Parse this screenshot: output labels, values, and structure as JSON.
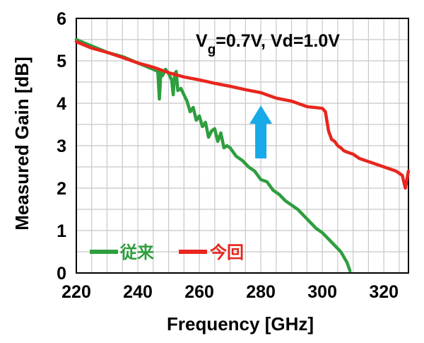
{
  "chart_data": {
    "type": "line",
    "xlabel": "Frequency [GHz]",
    "ylabel": "Measured Gain [dB]",
    "xlim": [
      220,
      328
    ],
    "ylim": [
      0,
      6
    ],
    "xticks": [
      220,
      240,
      260,
      280,
      300,
      320
    ],
    "yticks": [
      0,
      1,
      2,
      3,
      4,
      5,
      6
    ],
    "grid": true,
    "legend_placement": "bottom-left",
    "annotation": {
      "main": "V",
      "sub": "g",
      "rest": "=0.7V, Vd=1.0V"
    },
    "arrow": {
      "x": 280,
      "y_from": 2.7,
      "y_to": 3.95,
      "color": "#18A9E8"
    },
    "series": [
      {
        "name": "従来",
        "color": "#2E9E3E",
        "x": [
          220,
          225,
          230,
          235,
          240,
          245,
          246.5,
          247,
          247.5,
          248,
          249,
          250,
          251,
          251.5,
          252,
          252.5,
          253,
          254,
          255,
          256,
          257,
          258,
          259,
          260,
          261,
          262,
          263,
          264,
          265,
          266,
          267,
          268,
          269,
          270,
          272,
          274,
          276,
          278,
          280,
          282,
          284,
          286,
          288,
          290,
          292,
          294,
          296,
          298,
          300,
          302,
          304,
          306,
          308,
          309
        ],
        "y": [
          5.5,
          5.35,
          5.2,
          5.1,
          4.95,
          4.8,
          4.75,
          4.1,
          4.75,
          4.65,
          4.8,
          4.7,
          4.55,
          4.2,
          4.7,
          4.75,
          4.3,
          4.35,
          4.2,
          4.05,
          3.8,
          3.9,
          3.6,
          3.7,
          3.45,
          3.55,
          3.2,
          3.35,
          3.4,
          3.1,
          3.3,
          2.95,
          3.0,
          2.95,
          2.75,
          2.65,
          2.5,
          2.4,
          2.2,
          2.15,
          1.95,
          1.85,
          1.7,
          1.6,
          1.5,
          1.35,
          1.2,
          1.05,
          0.95,
          0.8,
          0.65,
          0.5,
          0.25,
          0.05
        ]
      },
      {
        "name": "今回",
        "color": "#E8261E",
        "x": [
          220,
          225,
          230,
          235,
          240,
          245,
          250,
          255,
          260,
          265,
          270,
          275,
          280,
          285,
          290,
          295,
          300,
          301,
          302,
          303,
          304,
          305,
          306,
          307,
          308,
          310,
          312,
          314,
          316,
          318,
          320,
          322,
          324,
          326,
          327,
          328
        ],
        "y": [
          5.45,
          5.3,
          5.2,
          5.08,
          4.95,
          4.85,
          4.72,
          4.62,
          4.55,
          4.47,
          4.4,
          4.32,
          4.25,
          4.12,
          4.05,
          3.92,
          3.88,
          3.8,
          3.35,
          3.15,
          3.1,
          3.0,
          2.95,
          2.88,
          2.85,
          2.8,
          2.7,
          2.65,
          2.6,
          2.55,
          2.5,
          2.45,
          2.4,
          2.3,
          2.0,
          2.4
        ]
      }
    ]
  }
}
